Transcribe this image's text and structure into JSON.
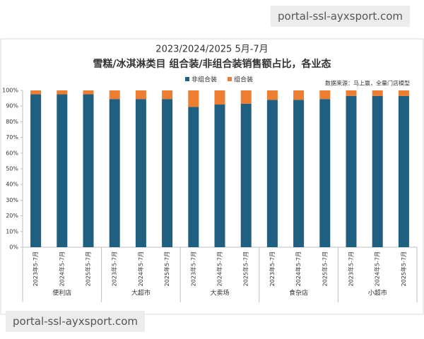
{
  "chart_data": {
    "type": "stacked_bar",
    "title": "2023/2024/2025 5月-7月",
    "subtitle": "雪糕/冰淇淋类目 组合装/非组合装销售额占比，各业态",
    "source": "数据来源：马上赢，全量门店模型",
    "groups": [
      "便利店",
      "大超市",
      "大卖场",
      "食杂店",
      "小超市"
    ],
    "categories": [
      "2023年5-7月",
      "2024年5-7月",
      "2025年5-7月",
      "2023年5-7月",
      "2024年5-7月",
      "2025年5-7月",
      "2023年5-7月",
      "2024年5-7月",
      "2025年5-7月",
      "2023年5-7月",
      "2024年5-7月",
      "2025年5-7月",
      "2023年5-7月",
      "2024年5-7月",
      "2025年5-7月"
    ],
    "series": [
      {
        "name": "非组合装",
        "color": "#1f5f80",
        "values": [
          97.5,
          97.5,
          97.5,
          94.5,
          94.5,
          94.5,
          89.5,
          91,
          91.5,
          94,
          94,
          94.5,
          96.5,
          96.5,
          96.5
        ]
      },
      {
        "name": "组合装",
        "color": "#ed7d31",
        "values": [
          2.5,
          2.5,
          2.5,
          5.5,
          5.5,
          5.5,
          10.5,
          9,
          8.5,
          6,
          6,
          5.5,
          3.5,
          3.5,
          3.5
        ]
      }
    ],
    "ylim": [
      0,
      100
    ],
    "yticks": [
      {
        "value": 0,
        "label": "0%"
      },
      {
        "value": 10,
        "label": "10%"
      },
      {
        "value": 20,
        "label": "20%"
      },
      {
        "value": 30,
        "label": "30%"
      },
      {
        "value": 40,
        "label": "40%"
      },
      {
        "value": 50,
        "label": "50%"
      },
      {
        "value": 60,
        "label": "60%"
      },
      {
        "value": 70,
        "label": "70%"
      },
      {
        "value": 80,
        "label": "80%"
      },
      {
        "value": 90,
        "label": "90%"
      },
      {
        "value": 100,
        "label": "100%"
      }
    ],
    "grid": false
  },
  "watermarks": [
    "portal-ssl-ayxsport.com",
    "portal-ssl-ayxsport.com"
  ]
}
